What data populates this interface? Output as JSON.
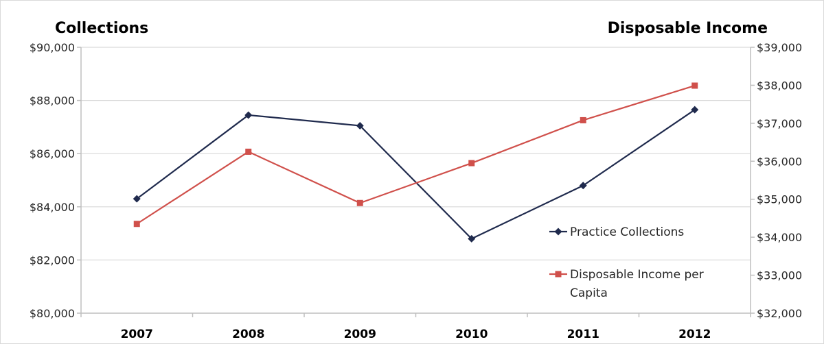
{
  "chart_data": {
    "type": "line",
    "title": "",
    "categories": [
      "2007",
      "2008",
      "2009",
      "2010",
      "2011",
      "2012"
    ],
    "y_left": {
      "label": "Collections",
      "lim": [
        80000,
        90000
      ],
      "ticks": [
        80000,
        82000,
        84000,
        86000,
        88000,
        90000
      ],
      "tick_labels": [
        "$80,000",
        "$82,000",
        "$84,000",
        "$86,000",
        "$88,000",
        "$90,000"
      ]
    },
    "y_right": {
      "label": "Disposable Income",
      "lim": [
        32000,
        39000
      ],
      "ticks": [
        32000,
        33000,
        34000,
        35000,
        36000,
        37000,
        38000,
        39000
      ],
      "tick_labels": [
        "$32,000",
        "$33,000",
        "$34,000",
        "$35,000",
        "$36,000",
        "$37,000",
        "$38,000",
        "$39,000"
      ]
    },
    "series": [
      {
        "name": "Practice Collections",
        "axis": "left",
        "color": "#1f2a4d",
        "marker": "diamond",
        "values": [
          84300,
          87450,
          87050,
          82800,
          84800,
          87650
        ]
      },
      {
        "name": "Disposable Income per Capita",
        "name_lines": [
          "Disposable Income per",
          "Capita"
        ],
        "axis": "right",
        "color": "#d0504b",
        "marker": "square",
        "values": [
          34350,
          36250,
          34900,
          35950,
          37080,
          37990
        ]
      }
    ],
    "grid": "horizontal",
    "legend": "bottom-right inside plot"
  }
}
